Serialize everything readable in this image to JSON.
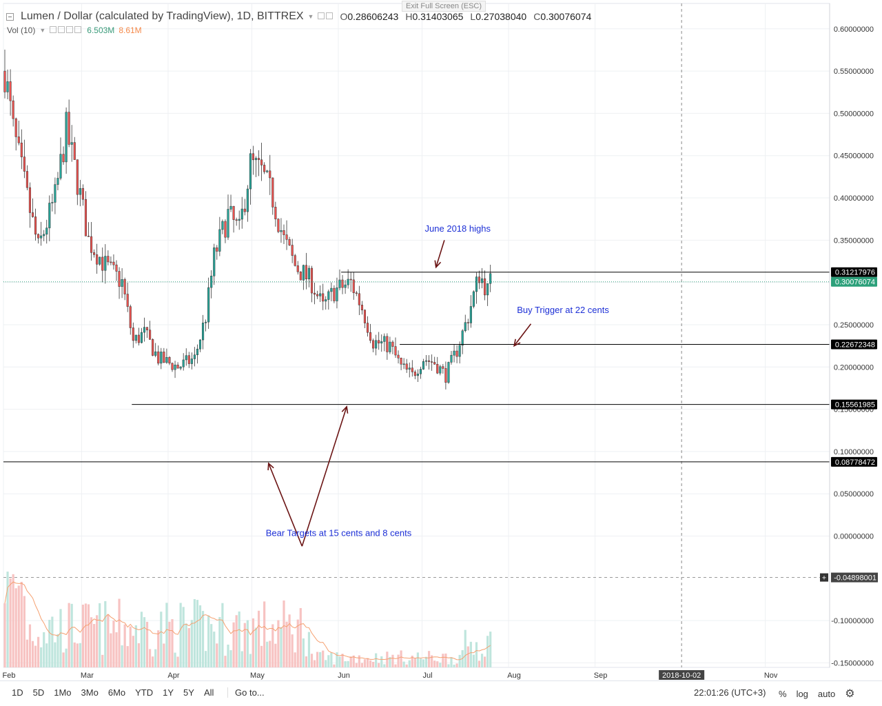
{
  "header": {
    "title": "Lumen / Dollar (calculated by TradingView), 1D, BITTREX",
    "ohlc": [
      {
        "label": "O",
        "value": "0.28606243"
      },
      {
        "label": "H",
        "value": "0.31403065"
      },
      {
        "label": "L",
        "value": "0.27038040"
      },
      {
        "label": "C",
        "value": "0.30076074"
      }
    ],
    "volume": {
      "label": "Vol (10)",
      "value": "6.503M",
      "ma": "8.61M"
    },
    "exit_fullscreen": "Exit Full Screen (ESC)"
  },
  "chart_data": {
    "type": "candlestick",
    "ylim": [
      -0.16,
      0.63
    ],
    "y_ticks": [
      "0.60000000",
      "0.55000000",
      "0.50000000",
      "0.45000000",
      "0.40000000",
      "0.35000000",
      "0.30000000",
      "0.25000000",
      "0.20000000",
      "0.15000000",
      "0.10000000",
      "0.05000000",
      "0.00000000",
      "-0.10000000",
      "-0.15000000"
    ],
    "x_ticks": [
      "Feb",
      "Mar",
      "Apr",
      "May",
      "Jun",
      "Jul",
      "Aug",
      "Sep",
      "Nov"
    ],
    "x_marker": "2018-10-02",
    "crosshair_value": "-0.04898001",
    "price_labels": [
      {
        "value": "0.31217976"
      },
      {
        "value": "0.30076074"
      },
      {
        "value": "0.22672348"
      },
      {
        "value": "0.15561985"
      },
      {
        "value": "0.08778472"
      }
    ],
    "annotations": [
      {
        "text": "June 2018 highs"
      },
      {
        "text": "Buy Trigger at 22 cents"
      },
      {
        "text": "Bear Targets at 15 cents and 8 cents"
      }
    ],
    "anchor_points": [
      {
        "day": 0,
        "price": 0.55
      },
      {
        "day": 3,
        "price": 0.48
      },
      {
        "day": 8,
        "price": 0.4
      },
      {
        "day": 12,
        "price": 0.34
      },
      {
        "day": 18,
        "price": 0.4
      },
      {
        "day": 22,
        "price": 0.48
      },
      {
        "day": 26,
        "price": 0.42
      },
      {
        "day": 30,
        "price": 0.35
      },
      {
        "day": 36,
        "price": 0.32
      },
      {
        "day": 42,
        "price": 0.3
      },
      {
        "day": 46,
        "price": 0.23
      },
      {
        "day": 50,
        "price": 0.24
      },
      {
        "day": 55,
        "price": 0.21
      },
      {
        "day": 62,
        "price": 0.2
      },
      {
        "day": 68,
        "price": 0.21
      },
      {
        "day": 72,
        "price": 0.26
      },
      {
        "day": 75,
        "price": 0.33
      },
      {
        "day": 80,
        "price": 0.38
      },
      {
        "day": 84,
        "price": 0.36
      },
      {
        "day": 88,
        "price": 0.44
      },
      {
        "day": 92,
        "price": 0.43
      },
      {
        "day": 96,
        "price": 0.4
      },
      {
        "day": 100,
        "price": 0.35
      },
      {
        "day": 104,
        "price": 0.32
      },
      {
        "day": 110,
        "price": 0.3
      },
      {
        "day": 114,
        "price": 0.27
      },
      {
        "day": 118,
        "price": 0.29
      },
      {
        "day": 124,
        "price": 0.3
      },
      {
        "day": 128,
        "price": 0.27
      },
      {
        "day": 132,
        "price": 0.23
      },
      {
        "day": 138,
        "price": 0.225
      },
      {
        "day": 142,
        "price": 0.2
      },
      {
        "day": 146,
        "price": 0.19
      },
      {
        "day": 150,
        "price": 0.21
      },
      {
        "day": 154,
        "price": 0.205
      },
      {
        "day": 158,
        "price": 0.19
      },
      {
        "day": 162,
        "price": 0.22
      },
      {
        "day": 166,
        "price": 0.26
      },
      {
        "day": 170,
        "price": 0.31
      },
      {
        "day": 173,
        "price": 0.29
      },
      {
        "day": 174,
        "price": 0.3
      }
    ]
  },
  "bottom_bar": {
    "periods": [
      "1D",
      "5D",
      "1Mo",
      "3Mo",
      "6Mo",
      "YTD",
      "1Y",
      "5Y",
      "All"
    ],
    "goto": "Go to...",
    "clock": "22:01:26 (UTC+3)",
    "pct": "%",
    "log": "log",
    "auto": "auto"
  },
  "colors": {
    "up": "#26a69a",
    "down": "#ef5350",
    "annotation_text": "#1c2fd6",
    "arrow": "#6b1414",
    "last_price_bg": "#2ca07a",
    "label_bg": "#000000"
  }
}
